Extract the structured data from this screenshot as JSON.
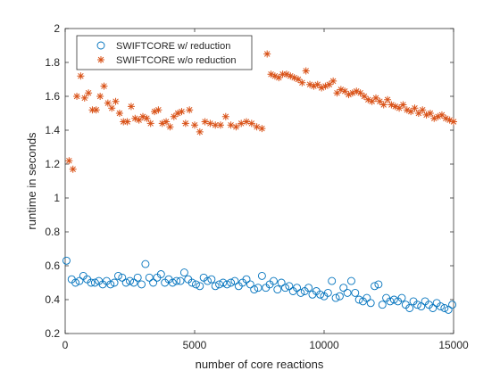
{
  "chart_data": {
    "type": "scatter",
    "title": "",
    "xlabel": "number of core reactions",
    "ylabel": "runtime in seconds",
    "xlim": [
      0,
      15000
    ],
    "ylim": [
      0.2,
      2
    ],
    "x_ticks": [
      0,
      5000,
      10000,
      15000
    ],
    "x_tick_labels": [
      "0",
      "5000",
      "10000",
      "15000"
    ],
    "y_ticks": [
      0.2,
      0.4,
      0.6,
      0.8,
      1,
      1.2,
      1.4,
      1.6,
      1.8,
      2
    ],
    "y_tick_labels": [
      "0.2",
      "0.4",
      "0.6",
      "0.8",
      "1",
      "1.2",
      "1.4",
      "1.6",
      "1.8",
      "2"
    ],
    "grid": false,
    "legend_position": "top-left",
    "series": [
      {
        "name": "SWIFTCORE w/ reduction",
        "marker": "circle",
        "color": "#0072BD",
        "x": [
          50,
          250,
          400,
          550,
          700,
          850,
          1000,
          1150,
          1300,
          1450,
          1600,
          1750,
          1900,
          2050,
          2200,
          2350,
          2500,
          2650,
          2800,
          2950,
          3100,
          3250,
          3400,
          3550,
          3700,
          3850,
          4000,
          4150,
          4300,
          4450,
          4600,
          4750,
          4900,
          5050,
          5200,
          5350,
          5500,
          5650,
          5800,
          5950,
          6100,
          6250,
          6400,
          6550,
          6700,
          6850,
          7000,
          7150,
          7300,
          7450,
          7600,
          7750,
          7900,
          8050,
          8200,
          8350,
          8500,
          8650,
          8800,
          8950,
          9100,
          9250,
          9400,
          9550,
          9700,
          9850,
          10000,
          10150,
          10300,
          10450,
          10600,
          10750,
          10900,
          11050,
          11200,
          11350,
          11500,
          11650,
          11800,
          11950,
          12100,
          12250,
          12400,
          12550,
          12700,
          12850,
          13000,
          13150,
          13300,
          13450,
          13600,
          13750,
          13900,
          14050,
          14200,
          14350,
          14500,
          14650,
          14800,
          14950
        ],
        "y": [
          0.63,
          0.52,
          0.5,
          0.51,
          0.54,
          0.52,
          0.5,
          0.5,
          0.51,
          0.49,
          0.51,
          0.49,
          0.5,
          0.54,
          0.53,
          0.5,
          0.51,
          0.5,
          0.53,
          0.49,
          0.61,
          0.53,
          0.5,
          0.53,
          0.55,
          0.5,
          0.52,
          0.5,
          0.51,
          0.51,
          0.56,
          0.52,
          0.5,
          0.49,
          0.48,
          0.53,
          0.51,
          0.52,
          0.48,
          0.49,
          0.5,
          0.49,
          0.5,
          0.51,
          0.48,
          0.5,
          0.52,
          0.49,
          0.46,
          0.47,
          0.54,
          0.47,
          0.49,
          0.51,
          0.46,
          0.5,
          0.47,
          0.48,
          0.45,
          0.47,
          0.44,
          0.45,
          0.47,
          0.43,
          0.45,
          0.43,
          0.42,
          0.44,
          0.51,
          0.41,
          0.42,
          0.47,
          0.44,
          0.51,
          0.44,
          0.4,
          0.39,
          0.41,
          0.38,
          0.48,
          0.49,
          0.37,
          0.41,
          0.39,
          0.4,
          0.39,
          0.41,
          0.37,
          0.35,
          0.39,
          0.37,
          0.36,
          0.39,
          0.37,
          0.35,
          0.38,
          0.36,
          0.35,
          0.34,
          0.37
        ]
      },
      {
        "name": "SWIFTCORE w/o reduction",
        "marker": "asterisk",
        "color": "#D95319",
        "x": [
          150,
          300,
          450,
          600,
          750,
          900,
          1050,
          1200,
          1350,
          1500,
          1650,
          1800,
          1950,
          2100,
          2250,
          2400,
          2550,
          2700,
          2850,
          3000,
          3150,
          3300,
          3450,
          3600,
          3750,
          3900,
          4050,
          4200,
          4350,
          4500,
          4650,
          4800,
          5000,
          5200,
          5400,
          5600,
          5800,
          6000,
          6200,
          6400,
          6600,
          6800,
          7000,
          7200,
          7400,
          7600,
          7800,
          7950,
          8100,
          8250,
          8400,
          8550,
          8700,
          8850,
          9000,
          9150,
          9300,
          9450,
          9600,
          9750,
          9900,
          10050,
          10200,
          10350,
          10500,
          10650,
          10800,
          10950,
          11100,
          11250,
          11400,
          11550,
          11700,
          11850,
          12000,
          12150,
          12300,
          12450,
          12600,
          12750,
          12900,
          13050,
          13200,
          13350,
          13500,
          13650,
          13800,
          13950,
          14100,
          14250,
          14400,
          14550,
          14700,
          14850,
          15000
        ],
        "y": [
          1.22,
          1.17,
          1.6,
          1.72,
          1.59,
          1.62,
          1.52,
          1.52,
          1.6,
          1.66,
          1.56,
          1.53,
          1.57,
          1.5,
          1.45,
          1.45,
          1.54,
          1.47,
          1.46,
          1.48,
          1.47,
          1.44,
          1.51,
          1.52,
          1.44,
          1.45,
          1.42,
          1.48,
          1.5,
          1.51,
          1.44,
          1.52,
          1.43,
          1.39,
          1.45,
          1.44,
          1.43,
          1.43,
          1.48,
          1.43,
          1.42,
          1.44,
          1.45,
          1.44,
          1.42,
          1.41,
          1.85,
          1.73,
          1.72,
          1.71,
          1.73,
          1.73,
          1.72,
          1.71,
          1.7,
          1.68,
          1.75,
          1.67,
          1.66,
          1.67,
          1.65,
          1.66,
          1.67,
          1.69,
          1.62,
          1.64,
          1.63,
          1.61,
          1.62,
          1.63,
          1.62,
          1.6,
          1.58,
          1.57,
          1.59,
          1.57,
          1.55,
          1.58,
          1.55,
          1.54,
          1.53,
          1.55,
          1.52,
          1.51,
          1.53,
          1.5,
          1.52,
          1.49,
          1.5,
          1.47,
          1.48,
          1.49,
          1.47,
          1.46,
          1.45
        ]
      }
    ]
  }
}
